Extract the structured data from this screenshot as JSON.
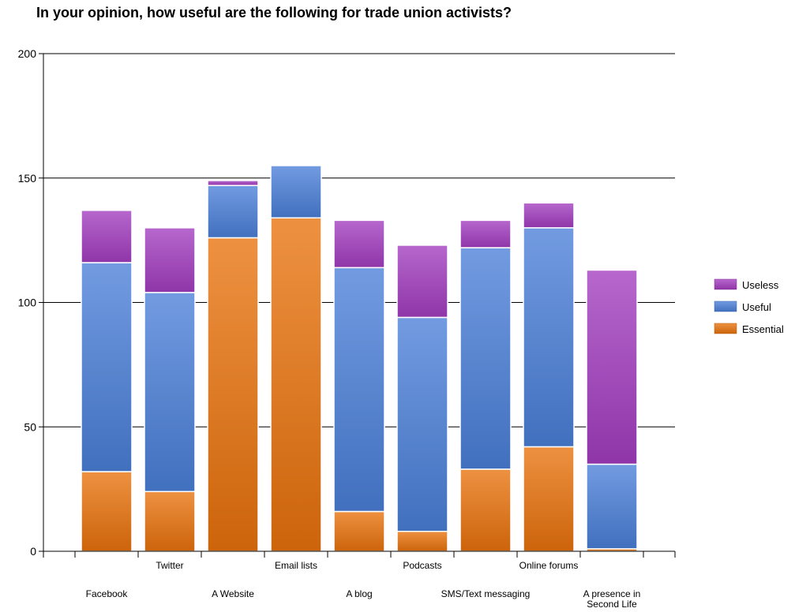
{
  "chart_data": {
    "type": "bar",
    "stacked": true,
    "title": "In your opinion, how useful are the following for trade union activists?",
    "categories": [
      "Facebook",
      "Twitter",
      "A Website",
      "Email lists",
      "A blog",
      "Podcasts",
      "SMS/Text messaging",
      "Online forums",
      "A presence in Second Life"
    ],
    "series": [
      {
        "name": "Essential",
        "color": "#e8720c",
        "values": [
          32,
          24,
          126,
          134,
          16,
          8,
          33,
          42,
          1
        ]
      },
      {
        "name": "Useful",
        "color": "#4a7fd8",
        "values": [
          84,
          80,
          21,
          21,
          98,
          86,
          89,
          88,
          34
        ]
      },
      {
        "name": "Useless",
        "color": "#a23cbf",
        "values": [
          21,
          26,
          2,
          0,
          19,
          29,
          11,
          10,
          78
        ]
      }
    ],
    "ylim": [
      0,
      200
    ],
    "yticks": [
      0,
      50,
      100,
      150,
      200
    ],
    "grid": true,
    "legend_position": "right",
    "legend_order": [
      "Useless",
      "Useful",
      "Essential"
    ]
  }
}
